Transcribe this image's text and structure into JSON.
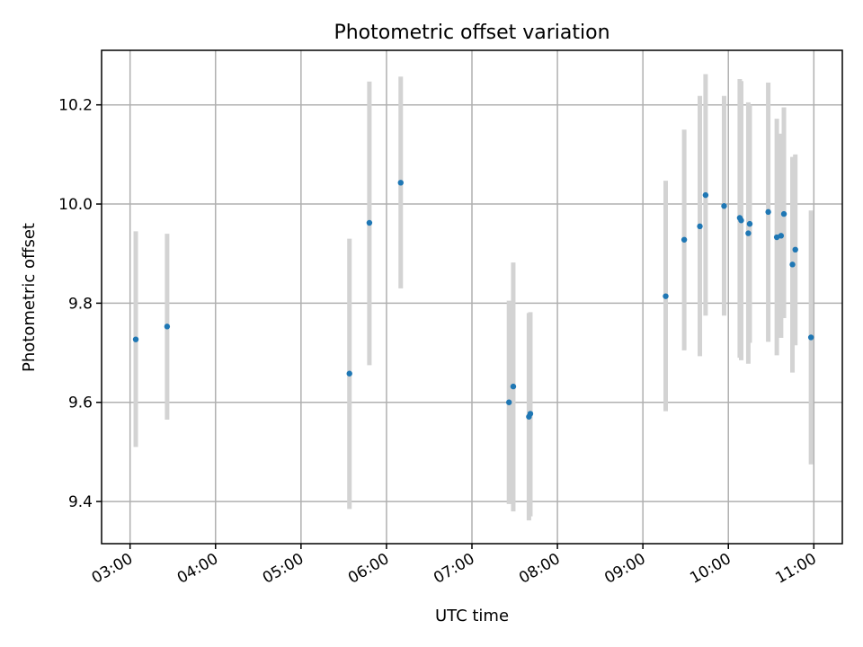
{
  "chart_data": {
    "type": "scatter",
    "title": "Photometric offset variation",
    "xlabel": "UTC time",
    "ylabel": "Photometric offset",
    "x_unit": "UTC time (HH:MM)",
    "xlim": [
      "02:40",
      "11:20"
    ],
    "ylim": [
      9.315,
      10.31
    ],
    "xticks": [
      "03:00",
      "04:00",
      "05:00",
      "06:00",
      "07:00",
      "08:00",
      "09:00",
      "10:00",
      "11:00"
    ],
    "yticks": [
      "9.4",
      "9.6",
      "9.8",
      "10.0",
      "10.2"
    ],
    "grid": true,
    "legend": "none",
    "colors": {
      "point": "#1f77b4",
      "errorbar": "#d3d3d3",
      "grid": "#b0b0b0"
    },
    "series": [
      {
        "points": [
          {
            "x": "03:04",
            "y": 9.727,
            "low": 9.51,
            "high": 9.945
          },
          {
            "x": "03:26",
            "y": 9.753,
            "low": 9.565,
            "high": 9.94
          },
          {
            "x": "05:34",
            "y": 9.658,
            "low": 9.385,
            "high": 9.93
          },
          {
            "x": "05:48",
            "y": 9.962,
            "low": 9.675,
            "high": 10.247
          },
          {
            "x": "06:10",
            "y": 10.043,
            "low": 9.83,
            "high": 10.257
          },
          {
            "x": "07:26",
            "y": 9.6,
            "low": 9.395,
            "high": 9.805
          },
          {
            "x": "07:29",
            "y": 9.632,
            "low": 9.38,
            "high": 9.882
          },
          {
            "x": "07:40",
            "y": 9.571,
            "low": 9.362,
            "high": 9.78
          },
          {
            "x": "07:41",
            "y": 9.577,
            "low": 9.37,
            "high": 9.782
          },
          {
            "x": "09:16",
            "y": 9.814,
            "low": 9.582,
            "high": 10.047
          },
          {
            "x": "09:29",
            "y": 9.928,
            "low": 9.705,
            "high": 10.15
          },
          {
            "x": "09:40",
            "y": 9.955,
            "low": 9.693,
            "high": 10.218
          },
          {
            "x": "09:44",
            "y": 10.018,
            "low": 9.775,
            "high": 10.262
          },
          {
            "x": "09:57",
            "y": 9.996,
            "low": 9.775,
            "high": 10.218
          },
          {
            "x": "10:08",
            "y": 9.972,
            "low": 9.69,
            "high": 10.252
          },
          {
            "x": "10:09",
            "y": 9.967,
            "low": 9.685,
            "high": 10.248
          },
          {
            "x": "10:14",
            "y": 9.941,
            "low": 9.678,
            "high": 10.205
          },
          {
            "x": "10:15",
            "y": 9.96,
            "low": 9.72,
            "high": 10.2
          },
          {
            "x": "10:28",
            "y": 9.984,
            "low": 9.722,
            "high": 10.245
          },
          {
            "x": "10:34",
            "y": 9.933,
            "low": 9.695,
            "high": 10.172
          },
          {
            "x": "10:37",
            "y": 9.936,
            "low": 9.73,
            "high": 10.142
          },
          {
            "x": "10:39",
            "y": 9.98,
            "low": 9.77,
            "high": 10.195
          },
          {
            "x": "10:45",
            "y": 9.878,
            "low": 9.66,
            "high": 10.095
          },
          {
            "x": "10:47",
            "y": 9.908,
            "low": 9.715,
            "high": 10.1
          },
          {
            "x": "10:58",
            "y": 9.731,
            "low": 9.475,
            "high": 9.987
          }
        ]
      }
    ]
  }
}
